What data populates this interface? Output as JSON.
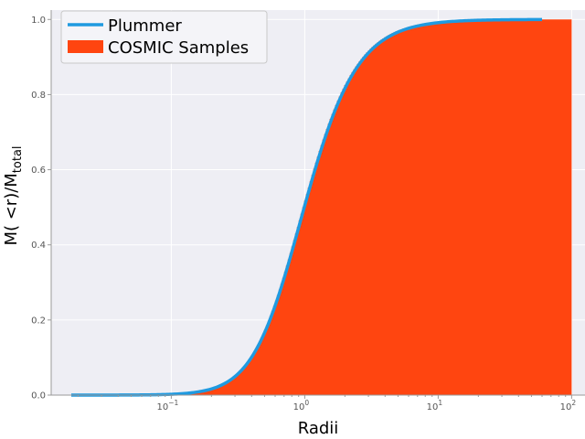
{
  "chart_data": {
    "type": "area",
    "title": "",
    "xlabel": "Radii",
    "ylabel": "M( <r)/M_total",
    "ylabel_main": "M( <r)/M",
    "ylabel_sub": "total",
    "xscale": "log",
    "xlim": [
      0.01259,
      125.9
    ],
    "ylim": [
      0,
      1.025
    ],
    "yticks": [
      0.0,
      0.2,
      0.4,
      0.6,
      0.8,
      1.0
    ],
    "ytick_labels": [
      "0.0",
      "0.2",
      "0.4",
      "0.6",
      "0.8",
      "1.0"
    ],
    "xticks": [
      0.1,
      1,
      10,
      100
    ],
    "xtick_labels": [
      {
        "base": "10",
        "exp": "−1"
      },
      {
        "base": "10",
        "exp": "0"
      },
      {
        "base": "10",
        "exp": "1"
      },
      {
        "base": "10",
        "exp": "2"
      }
    ],
    "grid": true,
    "legend_position": "top-left",
    "series": [
      {
        "name": "Plummer",
        "kind": "line",
        "color": "#1f9ae0",
        "x_range": [
          0.0178,
          60
        ],
        "formula": "r^3/(r^2+a^2)^1.5",
        "scale_a": 0.76
      },
      {
        "name": "COSMIC Samples",
        "kind": "step-histogram-cumulative",
        "color": "#ff4510",
        "x_range": [
          0.1,
          100
        ],
        "formula": "r^3/(r^2+a^2)^1.5",
        "scale_a": 0.76
      }
    ]
  }
}
